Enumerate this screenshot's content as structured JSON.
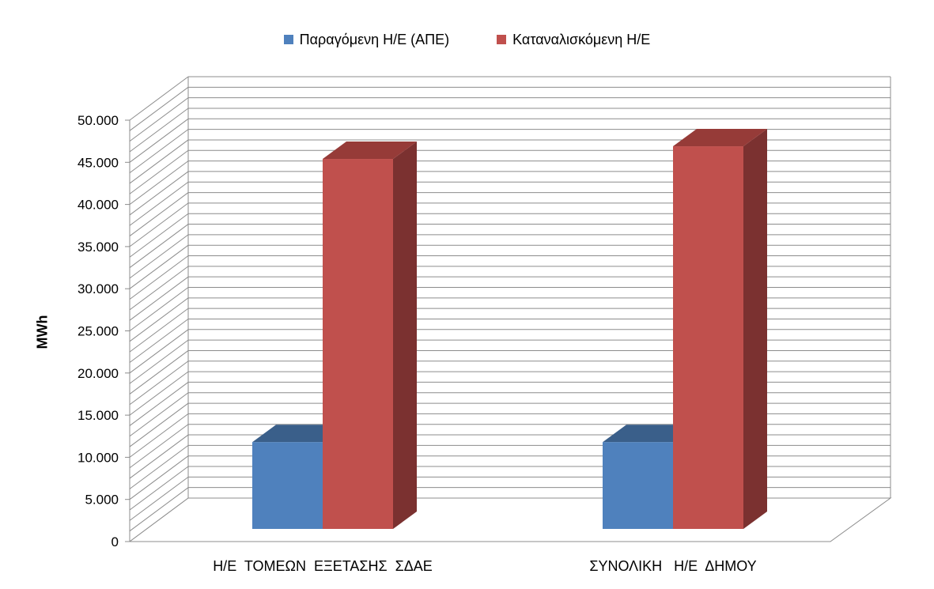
{
  "chart_data": {
    "type": "bar",
    "title": "",
    "xlabel": "",
    "ylabel": "MWh",
    "categories": [
      "Η/Ε  ΤΟΜΕΩΝ  ΕΞΕΤΑΣΗΣ  ΣΔΑΕ",
      "ΣΥΝΟΛΙΚΗ   Η/Ε  ΔΗΜΟΥ"
    ],
    "series": [
      {
        "name": "Παραγόμενη Η/Ε (ΑΠΕ)",
        "values": [
          10300,
          10300
        ],
        "color": "#4F81BD",
        "top_color": "#3A5F8A"
      },
      {
        "name": "Καταναλισκόμενη Η/Ε",
        "values": [
          43900,
          45400
        ],
        "color": "#C0504D",
        "side_color": "#7B3130",
        "top_color": "#963B38"
      }
    ],
    "ylim": [
      0,
      50000
    ],
    "yticks": [
      0,
      5000,
      10000,
      15000,
      20000,
      25000,
      30000,
      35000,
      40000,
      45000,
      50000
    ],
    "ytick_labels": [
      "0",
      "5.000",
      "10.000",
      "15.000",
      "20.000",
      "25.000",
      "30.000",
      "35.000",
      "40.000",
      "45.000",
      "50.000"
    ],
    "grid": true,
    "legend_position": "top-center",
    "style": "3d"
  }
}
